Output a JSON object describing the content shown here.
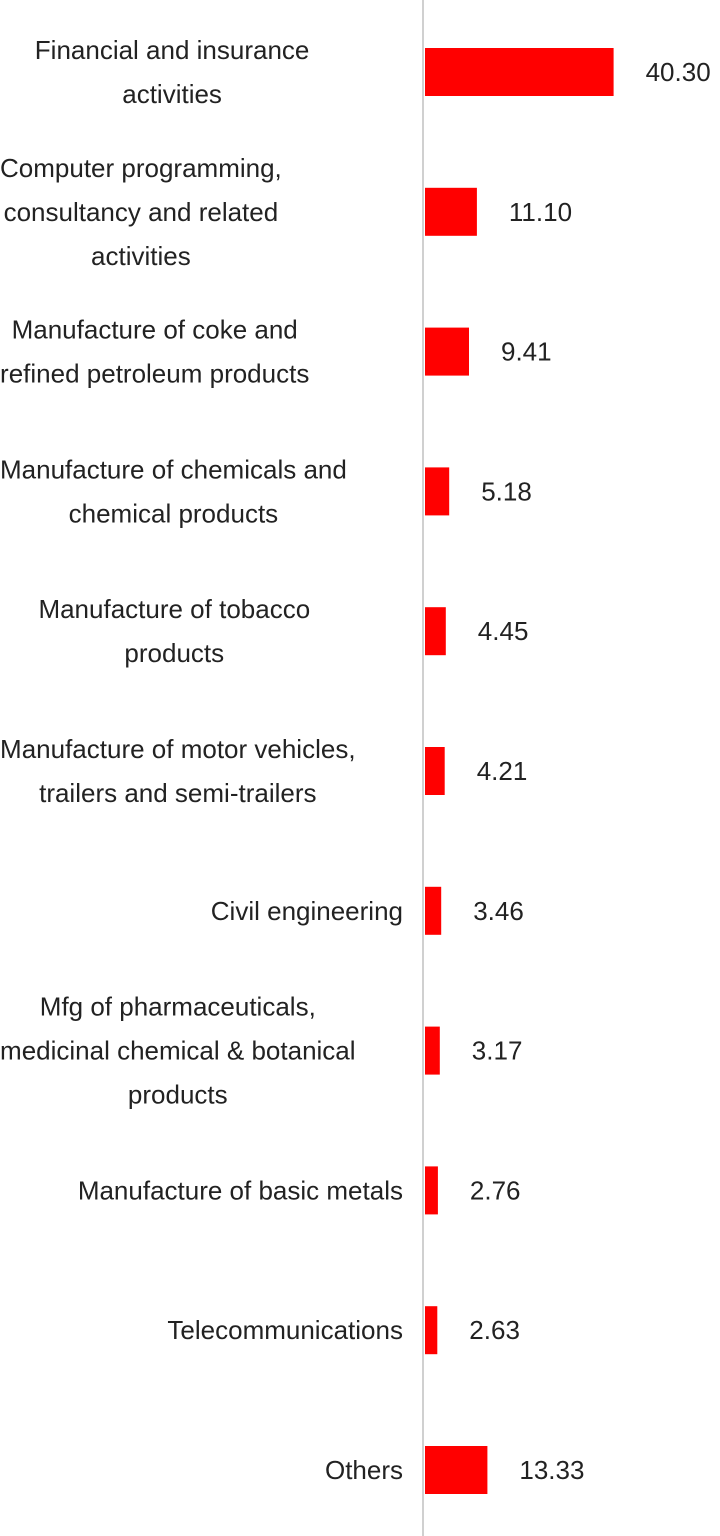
{
  "chart_data": {
    "type": "bar",
    "orientation": "horizontal",
    "categories": [
      "Financial and insurance activities",
      "Computer programming, consultancy and related activities",
      "Manufacture of coke and refined petroleum products",
      "Manufacture of chemicals and chemical products",
      "Manufacture of tobacco products",
      "Manufacture of motor vehicles, trailers and semi-trailers",
      "Civil engineering",
      "Mfg of pharmaceuticals, medicinal chemical & botanical products",
      "Manufacture of basic metals",
      "Telecommunications",
      "Others"
    ],
    "category_lines": [
      [
        "Financial and insurance",
        "activities"
      ],
      [
        "Computer programming,",
        "consultancy and related",
        "activities"
      ],
      [
        "Manufacture of coke and",
        "refined petroleum products"
      ],
      [
        "Manufacture of chemicals and",
        "chemical products"
      ],
      [
        "Manufacture of tobacco",
        "products"
      ],
      [
        "Manufacture of motor vehicles,",
        "trailers and semi-trailers"
      ],
      [
        "Civil engineering"
      ],
      [
        "Mfg of pharmaceuticals,",
        "medicinal chemical & botanical",
        "products"
      ],
      [
        "Manufacture of basic metals"
      ],
      [
        "Telecommunications"
      ],
      [
        "Others"
      ]
    ],
    "values": [
      40.3,
      11.1,
      9.41,
      5.18,
      4.45,
      4.21,
      3.46,
      3.17,
      2.76,
      2.63,
      13.33
    ],
    "value_labels": [
      "40.30",
      "11.10",
      "9.41",
      "5.18",
      "4.45",
      "4.21",
      "3.46",
      "3.17",
      "2.76",
      "2.63",
      "13.33"
    ],
    "title": "",
    "xlabel": "",
    "ylabel": "",
    "bar_color": "#ff0000",
    "axis_color": "#d0d0d0",
    "text_color": "#222222",
    "grid": false,
    "legend": "none"
  }
}
